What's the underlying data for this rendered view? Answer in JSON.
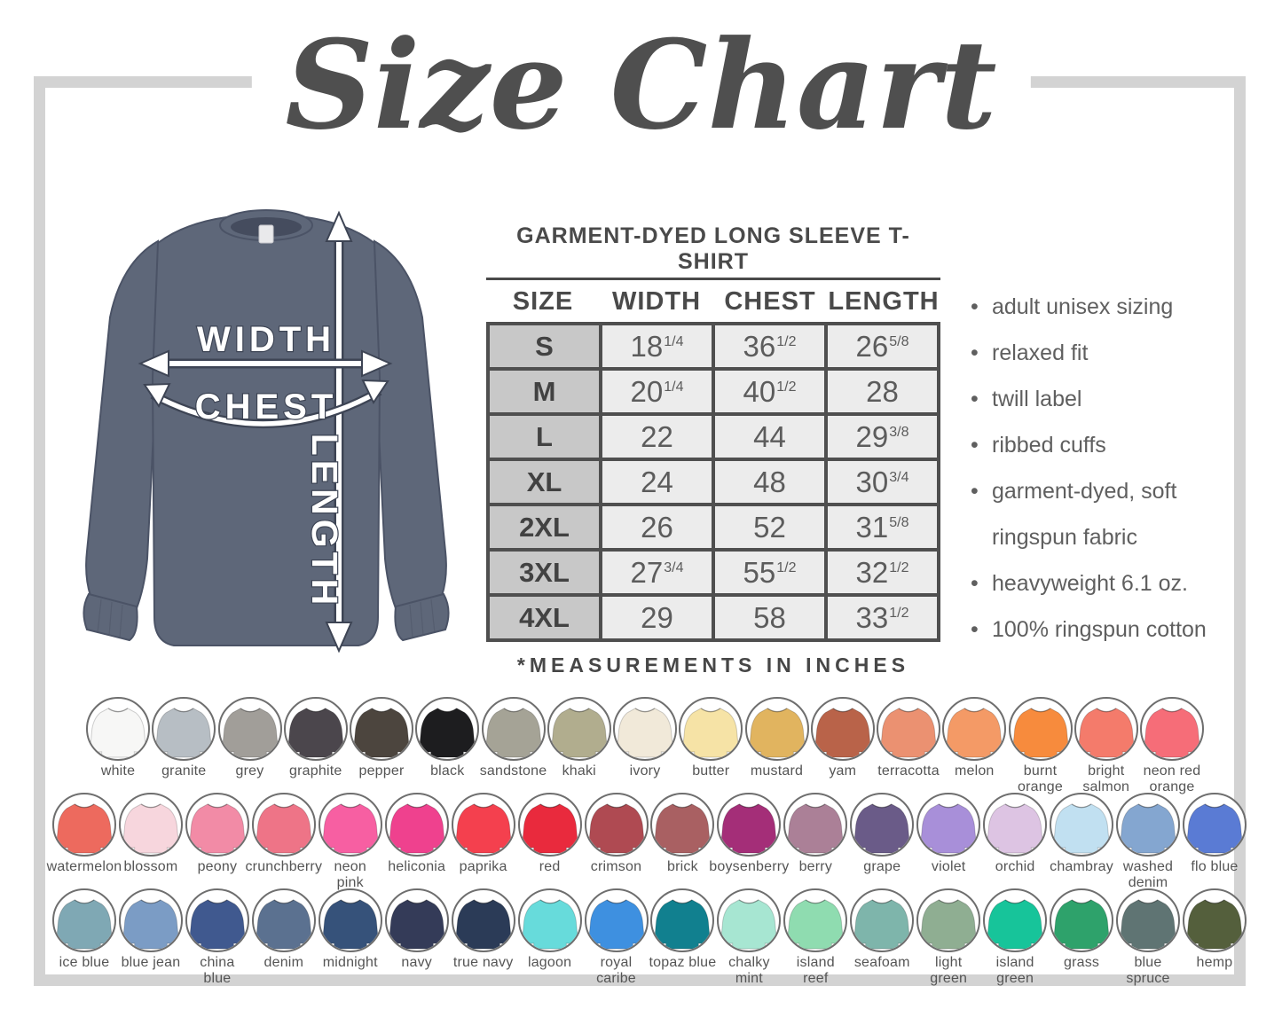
{
  "title": "Size Chart",
  "bullet_char": "•",
  "diagram": {
    "width_label": "WIDTH",
    "chest_label": "CHEST",
    "length_label": "LENGTH",
    "shirt_color": "#5e6779"
  },
  "table": {
    "title": "GARMENT-DYED LONG SLEEVE T-SHIRT",
    "headers": [
      "SIZE",
      "WIDTH",
      "CHEST",
      "LENGTH"
    ],
    "rows": [
      {
        "size": "S",
        "width": [
          "18",
          "1/4"
        ],
        "chest": [
          "36",
          "1/2"
        ],
        "length": [
          "26",
          "5/8"
        ]
      },
      {
        "size": "M",
        "width": [
          "20",
          "1/4"
        ],
        "chest": [
          "40",
          "1/2"
        ],
        "length": [
          "28",
          null
        ]
      },
      {
        "size": "L",
        "width": [
          "22",
          null
        ],
        "chest": [
          "44",
          null
        ],
        "length": [
          "29",
          "3/8"
        ]
      },
      {
        "size": "XL",
        "width": [
          "24",
          null
        ],
        "chest": [
          "48",
          null
        ],
        "length": [
          "30",
          "3/4"
        ]
      },
      {
        "size": "2XL",
        "width": [
          "26",
          null
        ],
        "chest": [
          "52",
          null
        ],
        "length": [
          "31",
          "5/8"
        ]
      },
      {
        "size": "3XL",
        "width": [
          "27",
          "3/4"
        ],
        "chest": [
          "55",
          "1/2"
        ],
        "length": [
          "32",
          "1/2"
        ]
      },
      {
        "size": "4XL",
        "width": [
          "29",
          null
        ],
        "chest": [
          "58",
          null
        ],
        "length": [
          "33",
          "1/2"
        ]
      }
    ],
    "footnote": "*MEASUREMENTS IN INCHES"
  },
  "features": [
    "adult unisex sizing",
    "relaxed fit",
    "twill label",
    "ribbed cuffs",
    "garment-dyed, soft\nringspun fabric",
    "heavyweight 6.1 oz.",
    "100% ringspun cotton"
  ],
  "colors": {
    "rows": [
      [
        {
          "label": "white",
          "hex": "#f7f7f6"
        },
        {
          "label": "granite",
          "hex": "#b7bec4"
        },
        {
          "label": "grey",
          "hex": "#a19e99"
        },
        {
          "label": "graphite",
          "hex": "#4b464c"
        },
        {
          "label": "pepper",
          "hex": "#4c453e"
        },
        {
          "label": "black",
          "hex": "#1d1d1f"
        },
        {
          "label": "sandstone",
          "hex": "#a5a396"
        },
        {
          "label": "khaki",
          "hex": "#b1ad8e"
        },
        {
          "label": "ivory",
          "hex": "#f1e9d9"
        },
        {
          "label": "butter",
          "hex": "#f6e3a6"
        },
        {
          "label": "mustard",
          "hex": "#e1b45f"
        },
        {
          "label": "yam",
          "hex": "#b96349"
        },
        {
          "label": "terracotta",
          "hex": "#eb9171"
        },
        {
          "label": "melon",
          "hex": "#f49a66"
        },
        {
          "label": "burnt\norange",
          "hex": "#f78b3d"
        },
        {
          "label": "bright\nsalmon",
          "hex": "#f47b6b"
        },
        {
          "label": "neon red\norange",
          "hex": "#f66d78"
        }
      ],
      [
        {
          "label": "watermelon",
          "hex": "#ed6a5e"
        },
        {
          "label": "blossom",
          "hex": "#f7d6dd"
        },
        {
          "label": "peony",
          "hex": "#f28ba6"
        },
        {
          "label": "crunchberry",
          "hex": "#ee7487"
        },
        {
          "label": "neon\npink",
          "hex": "#f75fa2"
        },
        {
          "label": "heliconia",
          "hex": "#ef418e"
        },
        {
          "label": "paprika",
          "hex": "#f4404e"
        },
        {
          "label": "red",
          "hex": "#e92a3d"
        },
        {
          "label": "crimson",
          "hex": "#af4a52"
        },
        {
          "label": "brick",
          "hex": "#a96062"
        },
        {
          "label": "boysenberry",
          "hex": "#a42e78"
        },
        {
          "label": "berry",
          "hex": "#ab8097"
        },
        {
          "label": "grape",
          "hex": "#6a5b88"
        },
        {
          "label": "violet",
          "hex": "#a88fd9"
        },
        {
          "label": "orchid",
          "hex": "#ddc4e3"
        },
        {
          "label": "chambray",
          "hex": "#c1e0f1"
        },
        {
          "label": "washed\ndenim",
          "hex": "#84a6d0"
        },
        {
          "label": "flo blue",
          "hex": "#5a7bd4"
        }
      ],
      [
        {
          "label": "ice blue",
          "hex": "#7fa8b4"
        },
        {
          "label": "blue jean",
          "hex": "#7b9cc5"
        },
        {
          "label": "china\nblue",
          "hex": "#40598f"
        },
        {
          "label": "denim",
          "hex": "#5b7190"
        },
        {
          "label": "midnight",
          "hex": "#36527a"
        },
        {
          "label": "navy",
          "hex": "#343b58"
        },
        {
          "label": "true navy",
          "hex": "#2b3b57"
        },
        {
          "label": "lagoon",
          "hex": "#67dbdb"
        },
        {
          "label": "royal\ncaribe",
          "hex": "#3e90e0"
        },
        {
          "label": "topaz blue",
          "hex": "#11808f"
        },
        {
          "label": "chalky\nmint",
          "hex": "#a7e6d2"
        },
        {
          "label": "island\nreef",
          "hex": "#8fdcb0"
        },
        {
          "label": "seafoam",
          "hex": "#7eb5ab"
        },
        {
          "label": "light\ngreen",
          "hex": "#8fae92"
        },
        {
          "label": "island\ngreen",
          "hex": "#17c49a"
        },
        {
          "label": "grass",
          "hex": "#2ea26b"
        },
        {
          "label": "blue\nspruce",
          "hex": "#5f7473"
        },
        {
          "label": "hemp",
          "hex": "#545f3c"
        }
      ]
    ]
  }
}
